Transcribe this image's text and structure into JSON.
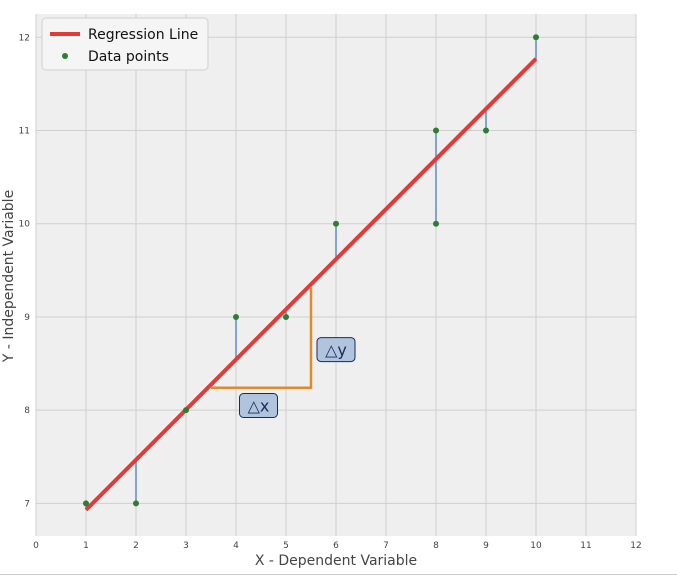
{
  "chart_data": {
    "type": "scatter",
    "title": "",
    "xlabel": "X - Dependent Variable",
    "ylabel": "Y - Independent Variable",
    "xlim": [
      0,
      12
    ],
    "ylim": [
      6.65,
      12.25
    ],
    "xticks": [
      "0",
      "1",
      "2",
      "3",
      "4",
      "5",
      "6",
      "7",
      "8",
      "9",
      "10",
      "11",
      "12"
    ],
    "yticks": [
      "7",
      "8",
      "9",
      "10",
      "11",
      "12"
    ],
    "grid": true,
    "legend_position": "top-left",
    "series": [
      {
        "name": "Data points",
        "kind": "scatter",
        "color": "#2e7d32",
        "x": [
          1,
          2,
          3,
          4,
          5,
          6,
          8,
          8,
          9,
          10
        ],
        "y": [
          7,
          7,
          8,
          9,
          9,
          10,
          11,
          10,
          11,
          12
        ]
      },
      {
        "name": "Regression Line",
        "kind": "line",
        "color": "#e53935",
        "x": [
          1,
          10
        ],
        "y": [
          6.93,
          11.77
        ]
      }
    ],
    "residual_color": "#4a7bbf",
    "annotations": {
      "triangle_color": "#e08a2e",
      "triangle": {
        "x0": 3.5,
        "x1": 5.5,
        "y": 8.24,
        "y_top": 9.32
      },
      "dx_label": {
        "text": "△x",
        "x": 4.45,
        "y": 8.05
      },
      "dy_label": {
        "text": "△y",
        "x": 6.0,
        "y": 8.65
      },
      "label_fill": "#b0c4de",
      "label_stroke": "#1a2a5a"
    }
  }
}
